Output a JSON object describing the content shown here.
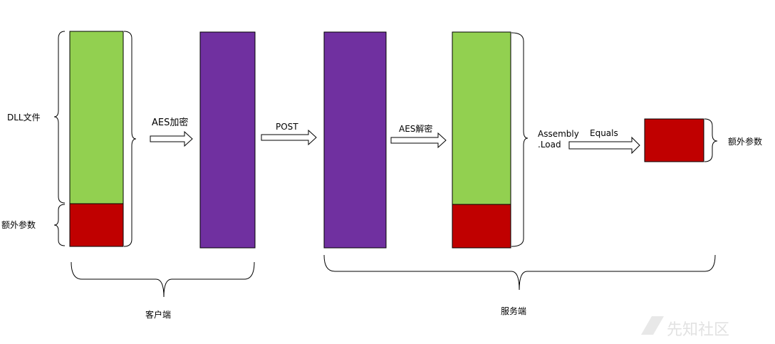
{
  "colors": {
    "green": "#92d050",
    "red": "#c00000",
    "purple": "#7030a0",
    "line": "#000000"
  },
  "labels": {
    "dll_file": "DLL文件",
    "extra_params_left": "额外参数",
    "aes_encrypt": "AES加密",
    "post": "POST",
    "aes_decrypt": "AES解密",
    "assembly_line1": "Assembly",
    "assembly_line2": ".Load",
    "equals": "Equals",
    "extra_params_right": "额外参数",
    "client": "客户端",
    "server": "服务端"
  },
  "watermark": {
    "text": "先知社区"
  }
}
